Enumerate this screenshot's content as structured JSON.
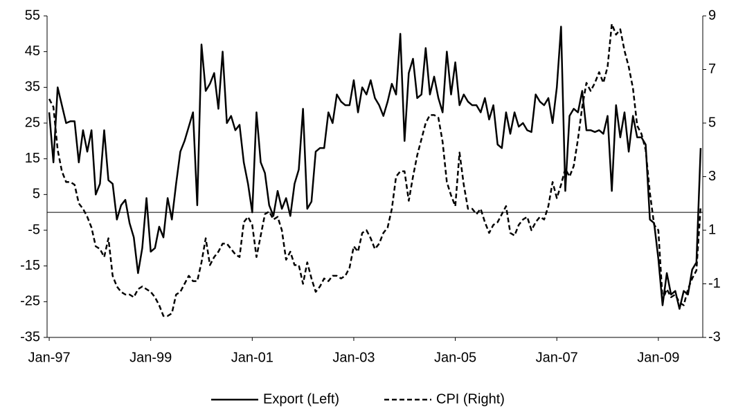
{
  "chart_data": {
    "type": "line",
    "categories": [
      "Jan-97",
      null,
      null,
      null,
      null,
      null,
      null,
      null,
      null,
      null,
      null,
      null,
      null,
      null,
      null,
      null,
      null,
      null,
      null,
      null,
      null,
      null,
      null,
      null,
      "Jan-99",
      null,
      null,
      null,
      null,
      null,
      null,
      null,
      null,
      null,
      null,
      null,
      null,
      null,
      null,
      null,
      null,
      null,
      null,
      null,
      null,
      null,
      null,
      null,
      "Jan-01",
      null,
      null,
      null,
      null,
      null,
      null,
      null,
      null,
      null,
      null,
      null,
      null,
      null,
      null,
      null,
      null,
      null,
      null,
      null,
      null,
      null,
      null,
      null,
      "Jan-03",
      null,
      null,
      null,
      null,
      null,
      null,
      null,
      null,
      null,
      null,
      null,
      null,
      null,
      null,
      null,
      null,
      null,
      null,
      null,
      null,
      null,
      null,
      null,
      "Jan-05",
      null,
      null,
      null,
      null,
      null,
      null,
      null,
      null,
      null,
      null,
      null,
      null,
      null,
      null,
      null,
      null,
      null,
      null,
      null,
      null,
      null,
      null,
      null,
      "Jan-07",
      null,
      null,
      null,
      null,
      null,
      null,
      null,
      null,
      null,
      null,
      null,
      null,
      null,
      null,
      null,
      null,
      null,
      null,
      null,
      null,
      null,
      null,
      null,
      "Jan-09",
      null,
      null,
      null,
      null,
      null,
      null,
      null,
      null,
      null,
      null
    ],
    "series": [
      {
        "name": "Export (Left)",
        "color": "#000000",
        "dashed": false,
        "axis": "y",
        "values": [
          28,
          14,
          35,
          30,
          25,
          25.5,
          25.5,
          14,
          23,
          17,
          23,
          5,
          8,
          23,
          9,
          8,
          -2,
          2,
          3.5,
          -3,
          -7,
          -17,
          -10,
          4,
          -11,
          -10,
          -4,
          -7,
          4,
          -2,
          8,
          17,
          20,
          24,
          28,
          2,
          47,
          34,
          36,
          39,
          29,
          45,
          25,
          27,
          23,
          24.5,
          14,
          8,
          0,
          28,
          14,
          11,
          2,
          -1,
          6,
          1,
          4,
          -1,
          8,
          12,
          29,
          1,
          3,
          17,
          18,
          18,
          28,
          25,
          33,
          31,
          30,
          30,
          37,
          28,
          35,
          33,
          37,
          32,
          30,
          27,
          31,
          36,
          33,
          50,
          20,
          39,
          43,
          32,
          33,
          46,
          33,
          38,
          32,
          28,
          45,
          33,
          42,
          30,
          33,
          31,
          30,
          30,
          28,
          32,
          26,
          30,
          19,
          18,
          28,
          22,
          28,
          24,
          25,
          23,
          22.5,
          33,
          31,
          30,
          32,
          25,
          35,
          52,
          6,
          27,
          29,
          28,
          34,
          23,
          23,
          22.5,
          23,
          22,
          27,
          6,
          30,
          21,
          28,
          17,
          27,
          21,
          21,
          19,
          -2,
          -3,
          -13,
          -26,
          -17,
          -23,
          -22,
          -27,
          -22,
          -23,
          -16,
          -14,
          18
        ]
      },
      {
        "name": "CPI (Right)",
        "color": "#000000",
        "dashed": true,
        "axis": "y2",
        "values": [
          5.9,
          5.6,
          4.0,
          3.2,
          2.8,
          2.8,
          2.7,
          2.0,
          1.8,
          1.5,
          1.1,
          0.4,
          0.3,
          0.0,
          0.7,
          -0.7,
          -1.1,
          -1.3,
          -1.4,
          -1.4,
          -1.5,
          -1.2,
          -1.1,
          -1.2,
          -1.3,
          -1.5,
          -1.8,
          -2.2,
          -2.2,
          -2.1,
          -1.4,
          -1.3,
          -1.0,
          -0.7,
          -0.9,
          -0.9,
          -0.2,
          0.7,
          -0.3,
          0.0,
          0.2,
          0.5,
          0.5,
          0.3,
          0.1,
          0.0,
          1.3,
          1.5,
          1.2,
          0.0,
          0.8,
          1.6,
          1.7,
          1.4,
          1.5,
          1.0,
          -0.1,
          0.2,
          -0.3,
          -0.3,
          -1.0,
          -0.2,
          -0.8,
          -1.3,
          -1.1,
          -0.8,
          -0.9,
          -0.7,
          -0.7,
          -0.8,
          -0.7,
          -0.4,
          0.4,
          0.2,
          0.9,
          1.0,
          0.7,
          0.3,
          0.5,
          0.9,
          1.1,
          1.8,
          3.0,
          3.2,
          3.2,
          2.1,
          3.0,
          3.8,
          4.4,
          5.0,
          5.3,
          5.3,
          5.2,
          4.3,
          2.8,
          2.3,
          1.9,
          3.9,
          2.7,
          1.8,
          1.8,
          1.6,
          1.8,
          1.3,
          0.9,
          1.2,
          1.3,
          1.6,
          1.9,
          0.9,
          0.8,
          1.2,
          1.4,
          1.5,
          1.0,
          1.3,
          1.5,
          1.4,
          1.9,
          2.8,
          2.2,
          2.7,
          3.3,
          3.0,
          3.4,
          4.4,
          5.6,
          6.5,
          6.2,
          6.5,
          6.9,
          6.5,
          7.1,
          8.7,
          8.3,
          8.5,
          7.7,
          7.1,
          6.3,
          4.9,
          4.6,
          4.0,
          2.4,
          1.2,
          1.0,
          -1.6,
          -1.2,
          -1.5,
          -1.4,
          -1.7,
          -1.8,
          -1.2,
          -0.8,
          -0.5,
          1.9
        ]
      }
    ],
    "ylim": [
      -35,
      55
    ],
    "yticks": [
      -35,
      -25,
      -15,
      -5,
      5,
      15,
      25,
      35,
      45,
      55
    ],
    "y2lim": [
      -3,
      9
    ],
    "y2ticks": [
      -3,
      -1,
      1,
      3,
      5,
      7,
      9
    ],
    "legend": "bottom"
  }
}
